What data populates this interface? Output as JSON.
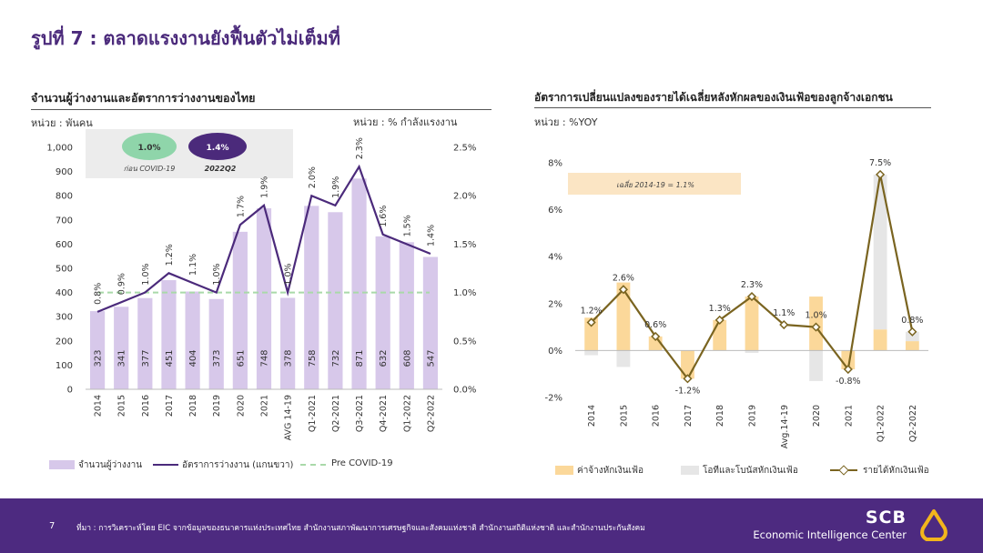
{
  "slide": {
    "title": "รูปที่ 7 : ตลาดแรงงานยังฟื้นตัวไม่เต็มที่"
  },
  "left": {
    "title": "จำนวนผู้ว่างงานและอัตราการว่างงานของไทย",
    "unit_left": "หน่วย : พันคน",
    "unit_right": "หน่วย : % กำลังแรงงาน",
    "callout": {
      "a_value": "1.0%",
      "a_label": "ก่อน COVID-19",
      "b_value": "1.4%",
      "b_label": "2022Q2"
    },
    "legend": [
      "จำนวนผู้ว่างงาน",
      "อัตราการว่างงาน (แกนขวา)",
      "Pre COVID-19"
    ]
  },
  "right": {
    "title": "อัตราการเปลี่ยนแปลงของรายได้เฉลี่ยหลังหักผลของเงินเฟ้อของลูกจ้างเอกชน",
    "unit": "หน่วย : %YOY",
    "note": "เฉลี่ย 2014-19 = 1.1%",
    "legend": [
      "ค่าจ้างหักเงินเฟ้อ",
      "โอทีและโบนัสหักเงินเฟ้อ",
      "รายได้หักเงินเฟ้อ"
    ]
  },
  "footer": {
    "page": "7",
    "source": "ที่มา : การวิเคราะห์โดย EIC จากข้อมูลของธนาคารแห่งประเทศไทย สำนักงานสภาพัฒนาการเศรษฐกิจและสังคมแห่งชาติ สำนักงานสถิติแห่งชาติ และสำนักงานประกันสังคม",
    "brand": "SCB",
    "center": "Economic Intelligence Center"
  },
  "colors": {
    "purple_dark": "#4b2a7b",
    "bar_lilac": "#d7c8ea",
    "green_dashed": "#a9d9a9",
    "bar_orange": "#fbd89a",
    "bar_grey": "#e6e6e6",
    "line_olive": "#7a6420",
    "callout_green": "#8fd5aa"
  },
  "chart_data": [
    {
      "type": "bar",
      "categories": [
        "2014",
        "2015",
        "2016",
        "2017",
        "2018",
        "2019",
        "2020",
        "2021",
        "AVG 14-19",
        "Q1-2021",
        "Q2-2021",
        "Q3-2021",
        "Q4-2021",
        "Q1-2022",
        "Q2-2022"
      ],
      "series": [
        {
          "name": "จำนวนผู้ว่างงาน",
          "type": "bar",
          "axis": "left",
          "values": [
            323,
            341,
            377,
            451,
            404,
            373,
            651,
            748,
            378,
            758,
            732,
            871,
            632,
            608,
            547
          ],
          "labels": [
            "323",
            "341",
            "377",
            "451",
            "404",
            "373",
            "651",
            "748",
            "378",
            "758",
            "732",
            "871",
            "632",
            "608",
            "547"
          ]
        },
        {
          "name": "อัตราการว่างงาน (แกนขวา)",
          "type": "line",
          "axis": "right",
          "values": [
            0.8,
            0.9,
            1.0,
            1.2,
            1.1,
            1.0,
            1.7,
            1.9,
            1.0,
            2.0,
            1.9,
            2.3,
            1.6,
            1.5,
            1.4
          ],
          "labels": [
            "0.8%",
            "0.9%",
            "1.0%",
            "1.2%",
            "1.1%",
            "1.0%",
            "1.7%",
            "1.9%",
            "1.0%",
            "2.0%",
            "1.9%",
            "2.3%",
            "1.6%",
            "1.5%",
            "1.4%"
          ]
        },
        {
          "name": "Pre COVID-19",
          "type": "line",
          "axis": "right",
          "style": "dashed",
          "values": [
            1.0,
            1.0,
            1.0,
            1.0,
            1.0,
            1.0,
            1.0,
            1.0,
            1.0,
            1.0,
            1.0,
            1.0,
            1.0,
            1.0,
            1.0
          ]
        }
      ],
      "ylim": [
        0,
        1000
      ],
      "yticks": [
        0,
        100,
        200,
        300,
        400,
        500,
        600,
        700,
        800,
        900,
        1000
      ],
      "ytick_labels": [
        "0",
        "100",
        "200",
        "300",
        "400",
        "500",
        "600",
        "700",
        "800",
        "900",
        "1,000"
      ],
      "y2lim": [
        0,
        2.5
      ],
      "y2ticks": [
        0,
        0.5,
        1.0,
        1.5,
        2.0,
        2.5
      ],
      "y2tick_labels": [
        "0.0%",
        "0.5%",
        "1.0%",
        "1.5%",
        "2.0%",
        "2.5%"
      ],
      "legend": "bottom"
    },
    {
      "type": "bar",
      "categories": [
        "2014",
        "2015",
        "2016",
        "2017",
        "2018",
        "2019",
        "Avg.14-19",
        "2020",
        "2021",
        "Q1-2022",
        "Q2-2022"
      ],
      "series": [
        {
          "name": "ค่าจ้างหักเงินเฟ้อ",
          "type": "bar",
          "stack": "pos",
          "values": [
            1.4,
            2.9,
            0.6,
            -1.2,
            1.3,
            2.3,
            0,
            2.3,
            -0.8,
            0.9,
            0.4
          ]
        },
        {
          "name": "โอทีและโบนัสหักเงินเฟ้อ",
          "type": "bar",
          "stack": "pos",
          "values": [
            -0.2,
            -0.7,
            0,
            0,
            0,
            -0.1,
            0,
            -1.3,
            0,
            6.6,
            0.4
          ]
        },
        {
          "name": "รายได้หักเงินเฟ้อ",
          "type": "line",
          "values": [
            1.2,
            2.6,
            0.6,
            -1.2,
            1.3,
            2.3,
            1.1,
            1.0,
            -0.8,
            7.5,
            0.8
          ],
          "labels": [
            "1.2%",
            "2.6%",
            "0.6%",
            "-1.2%",
            "1.3%",
            "2.3%",
            "1.1%",
            "1.0%",
            "-0.8%",
            "7.5%",
            "0.8%"
          ]
        }
      ],
      "ylim": [
        -2,
        8
      ],
      "yticks": [
        -2,
        0,
        2,
        4,
        6,
        8
      ],
      "ytick_labels": [
        "-2%",
        "0%",
        "2%",
        "4%",
        "6%",
        "8%"
      ],
      "legend": "bottom"
    }
  ]
}
